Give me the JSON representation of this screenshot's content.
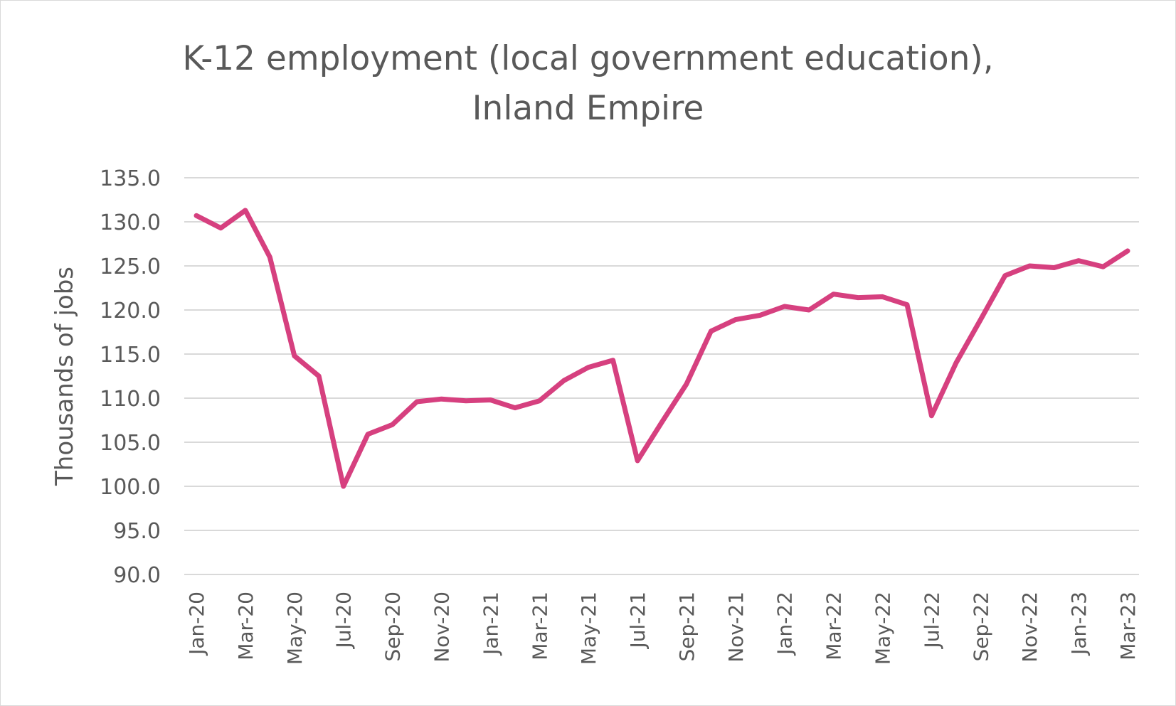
{
  "chart_data": {
    "type": "line",
    "title_lines": [
      "K-12 employment (local government education),",
      "Inland Empire"
    ],
    "ylabel": "Thousands of jobs",
    "xlabel": "",
    "ylim": [
      90,
      135
    ],
    "y_ticks": [
      "90.0",
      "95.0",
      "100.0",
      "105.0",
      "110.0",
      "115.0",
      "120.0",
      "125.0",
      "130.0",
      "135.0"
    ],
    "grid": true,
    "legend": "none",
    "line_color": "#d6407f",
    "grid_color": "#d9d9d9",
    "x": [
      "Jan-20",
      "Feb-20",
      "Mar-20",
      "Apr-20",
      "May-20",
      "Jun-20",
      "Jul-20",
      "Aug-20",
      "Sep-20",
      "Oct-20",
      "Nov-20",
      "Dec-20",
      "Jan-21",
      "Feb-21",
      "Mar-21",
      "Apr-21",
      "May-21",
      "Jun-21",
      "Jul-21",
      "Aug-21",
      "Sep-21",
      "Oct-21",
      "Nov-21",
      "Dec-21",
      "Jan-22",
      "Feb-22",
      "Mar-22",
      "Apr-22",
      "May-22",
      "Jun-22",
      "Jul-22",
      "Aug-22",
      "Sep-22",
      "Oct-22",
      "Nov-22",
      "Dec-22",
      "Jan-23",
      "Feb-23",
      "Mar-23"
    ],
    "x_tick_labels": [
      "Jan-20",
      "Mar-20",
      "May-20",
      "Jul-20",
      "Sep-20",
      "Nov-20",
      "Jan-21",
      "Mar-21",
      "May-21",
      "Jul-21",
      "Sep-21",
      "Nov-21",
      "Jan-22",
      "Mar-22",
      "May-22",
      "Jul-22",
      "Sep-22",
      "Nov-22",
      "Jan-23",
      "Mar-23"
    ],
    "series": [
      {
        "values": [
          130.7,
          129.3,
          131.3,
          126.0,
          114.8,
          112.5,
          100.0,
          105.9,
          107.0,
          109.6,
          109.9,
          109.7,
          109.8,
          108.9,
          109.7,
          112.0,
          113.5,
          114.3,
          102.9,
          107.3,
          111.6,
          117.6,
          118.9,
          119.4,
          120.4,
          120.0,
          121.8,
          121.4,
          121.5,
          120.6,
          108.0,
          114.0,
          118.9,
          123.9,
          125.0,
          124.8,
          125.6,
          124.9,
          126.7
        ]
      }
    ]
  }
}
